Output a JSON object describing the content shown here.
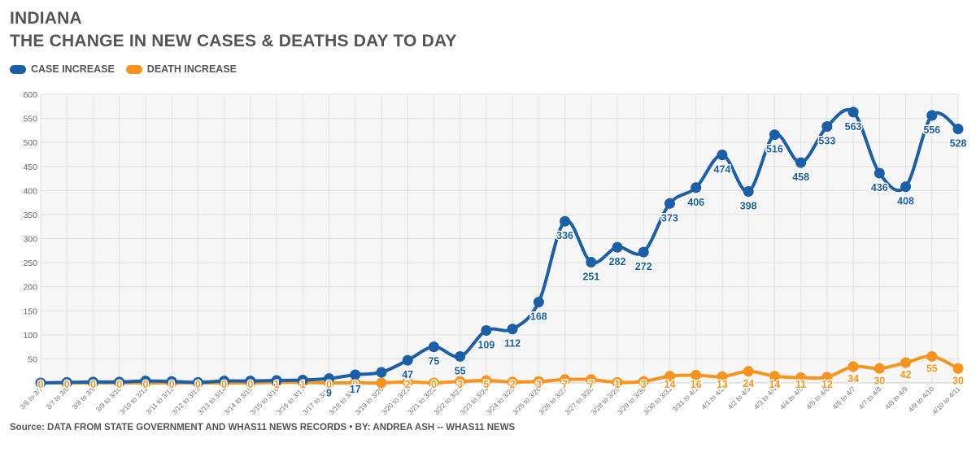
{
  "header": {
    "title_line1": "INDIANA",
    "title_line2": "THE CHANGE IN NEW CASES & DEATHS DAY TO DAY"
  },
  "legend": [
    {
      "label": "CASE INCREASE",
      "color": "#1a5fa8"
    },
    {
      "label": "DEATH INCREASE",
      "color": "#f7941d"
    }
  ],
  "source": "Source: DATA FROM STATE GOVERNMENT AND WHAS11 NEWS RECORDS • BY: ANDREA ASH -- WHAS11 NEWS",
  "chart_data": {
    "type": "line",
    "categories": [
      "3/6 to 3/7",
      "3/7 to 3/8",
      "3/8 to 3/9",
      "3/9 to 3/10",
      "3/10 to 3/11",
      "3/11 to 3/12",
      "3/12 to 3/13",
      "3/13 to 3/14",
      "3/14 to 3/15",
      "3/15 to 3/16",
      "3/16 to 3/17",
      "3/17 to 3/18",
      "3/18 to 3/19",
      "3/19 to 3/20",
      "3/20 to 3/21",
      "3/21 to 3/22",
      "3/22 to 3/23",
      "3/23 to 3/24",
      "3/24 to 3/25",
      "3/25 to 3/26",
      "3/26 to 3/27",
      "3/27 to 3/28",
      "3/28 to 3/29",
      "3/29 to 3/30",
      "3/30 to 3/31",
      "3/31 to 4/1",
      "4/1 to 4/2",
      "4/2 to 4/3",
      "4/3 to 4/4",
      "4/4 to 4/5",
      "4/5 to 4/6",
      "4/6 to 4/7",
      "4/7 to 4/8",
      "4/8 to 4/9",
      "4/9 to 4/10",
      "4/10 to 4/11"
    ],
    "series": [
      {
        "name": "CASE INCREASE",
        "color": "#1a5fa8",
        "values": [
          0,
          1,
          2,
          2,
          4,
          3,
          1,
          4,
          4,
          5,
          6,
          9,
          17,
          22,
          47,
          75,
          55,
          109,
          112,
          168,
          336,
          251,
          282,
          272,
          373,
          406,
          474,
          398,
          516,
          458,
          533,
          563,
          436,
          408,
          556,
          528
        ],
        "labeled": [
          false,
          false,
          false,
          false,
          false,
          false,
          false,
          false,
          false,
          false,
          false,
          true,
          true,
          false,
          true,
          true,
          true,
          true,
          true,
          true,
          true,
          true,
          true,
          true,
          true,
          true,
          true,
          true,
          true,
          true,
          true,
          true,
          true,
          true,
          true,
          true
        ]
      },
      {
        "name": "DEATH INCREASE",
        "color": "#f7941d",
        "values": [
          0,
          0,
          0,
          0,
          0,
          0,
          0,
          0,
          0,
          1,
          1,
          0,
          0,
          0,
          2,
          0,
          3,
          5,
          2,
          3,
          7,
          7,
          1,
          3,
          14,
          16,
          13,
          24,
          14,
          11,
          12,
          34,
          30,
          42,
          55,
          30
        ],
        "labeled": [
          true,
          true,
          true,
          true,
          true,
          true,
          true,
          true,
          true,
          true,
          true,
          true,
          true,
          false,
          true,
          true,
          true,
          true,
          true,
          true,
          true,
          true,
          true,
          true,
          true,
          true,
          true,
          true,
          true,
          true,
          true,
          true,
          true,
          true,
          true,
          true
        ]
      }
    ],
    "yticks": [
      50,
      100,
      150,
      200,
      250,
      300,
      350,
      400,
      450,
      500,
      550,
      600
    ],
    "ylim": [
      0,
      600
    ],
    "grid": true,
    "legend_position": "top-left"
  }
}
